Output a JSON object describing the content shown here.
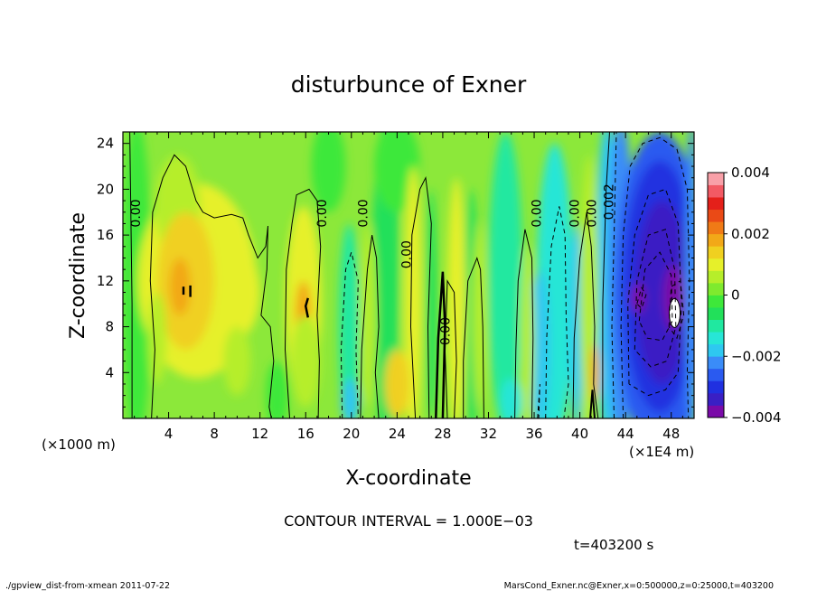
{
  "chart_data": {
    "type": "heatmap",
    "title": "disturbunce of Exner",
    "xlabel": "X-coordinate",
    "ylabel": "Z-coordinate",
    "x_unit": "(×1000 m)",
    "x_unit_right": "(×1E4 m)",
    "xlim": [
      0,
      50
    ],
    "ylim": [
      0,
      25
    ],
    "x_ticks": [
      4,
      8,
      12,
      16,
      20,
      24,
      28,
      32,
      36,
      40,
      44,
      48
    ],
    "y_ticks": [
      4,
      8,
      12,
      16,
      20,
      24
    ],
    "colorbar": {
      "range": [
        -0.004,
        0.004
      ],
      "labels": [
        {
          "value": 0.004,
          "text": "0.004"
        },
        {
          "value": 0.002,
          "text": "0.002"
        },
        {
          "value": 0,
          "text": "0"
        },
        {
          "value": -0.002,
          "text": "−0.002"
        },
        {
          "value": -0.004,
          "text": "−0.004"
        }
      ],
      "colors": [
        "#7a0aa8",
        "#3a1fc4",
        "#2030e0",
        "#2a5af0",
        "#3a8cf8",
        "#2ec8f0",
        "#27e6d6",
        "#20e8a0",
        "#22e05a",
        "#3ee83a",
        "#7fea2e",
        "#b6ee2a",
        "#e6f02a",
        "#f0d020",
        "#f2a818",
        "#f07a16",
        "#ea4a16",
        "#e4201a",
        "#f25a64",
        "#f8a0a8"
      ]
    },
    "contour_labels": [
      {
        "x": 1.5,
        "z": 17.9,
        "text": "0.00"
      },
      {
        "x": 17.8,
        "z": 17.9,
        "text": "0.00"
      },
      {
        "x": 21.4,
        "z": 17.9,
        "text": "0.00"
      },
      {
        "x": 25.2,
        "z": 14.3,
        "text": "0.00"
      },
      {
        "x": 28.6,
        "z": 7.6,
        "text": "0.00"
      },
      {
        "x": 36.6,
        "z": 17.9,
        "text": "0.00"
      },
      {
        "x": 39.9,
        "z": 17.9,
        "text": "0.00"
      },
      {
        "x": 41.4,
        "z": 17.9,
        "text": "0.00"
      },
      {
        "x": 42.9,
        "z": 18.9,
        "text": "0.002"
      }
    ],
    "contour_interval": "CONTOUR INTERVAL = 1.000E−03",
    "time_label": "t=403200 s"
  },
  "footer": {
    "left": "./gpview_dist-from-xmean  2011-07-22",
    "right": "MarsCond_Exner.nc@Exner,x=0:500000,z=0:25000,t=403200"
  }
}
